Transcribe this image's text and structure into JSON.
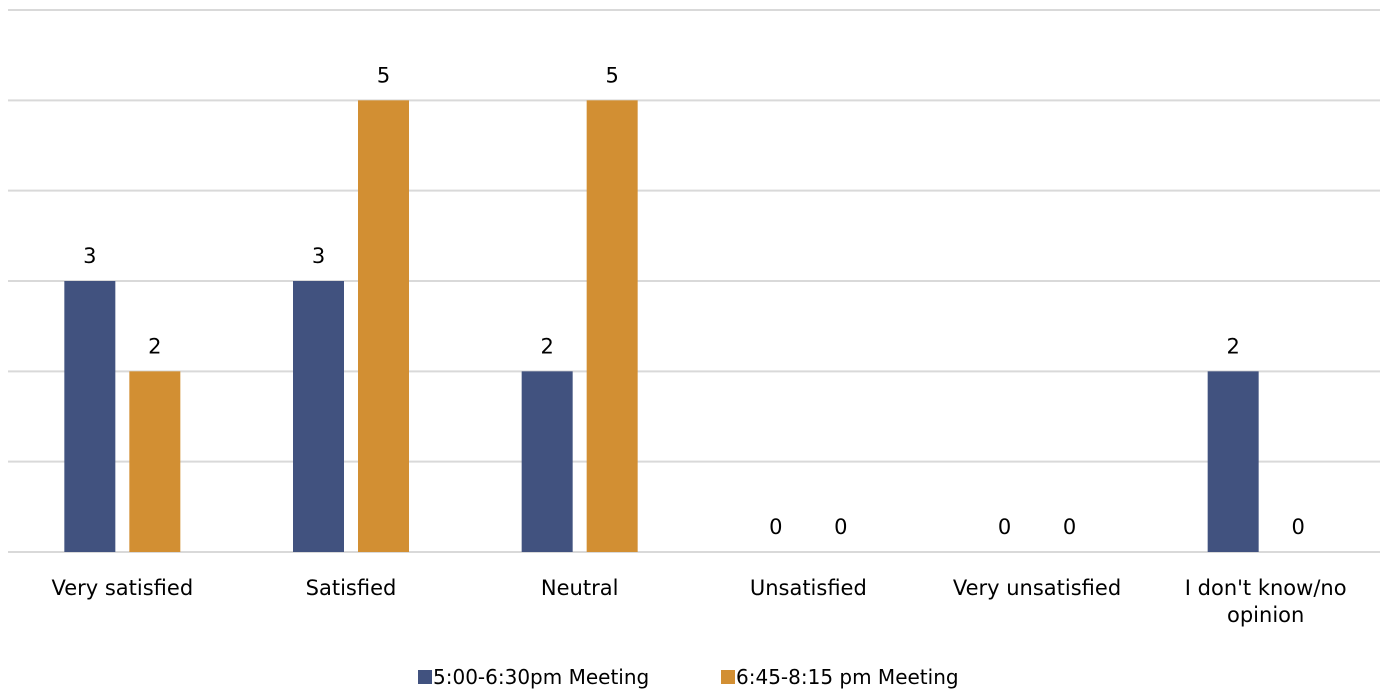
{
  "chart_data": {
    "type": "bar",
    "categories": [
      [
        "Very satisfied"
      ],
      [
        "Satisfied"
      ],
      [
        "Neutral"
      ],
      [
        "Unsatisfied"
      ],
      [
        "Very unsatisfied"
      ],
      [
        "I don't know/no",
        "opinion"
      ]
    ],
    "series": [
      {
        "name": "5:00-6:30pm Meeting",
        "color": "#41527f",
        "values": [
          3,
          3,
          2,
          0,
          0,
          2
        ]
      },
      {
        "name": "6:45-8:15 pm Meeting",
        "color": "#d28f33",
        "values": [
          2,
          5,
          5,
          0,
          0,
          0
        ]
      }
    ],
    "ylim": [
      0,
      6
    ],
    "grid": true,
    "legend_position": "bottom",
    "data_labels": true,
    "title": "",
    "xlabel": "",
    "ylabel": ""
  }
}
